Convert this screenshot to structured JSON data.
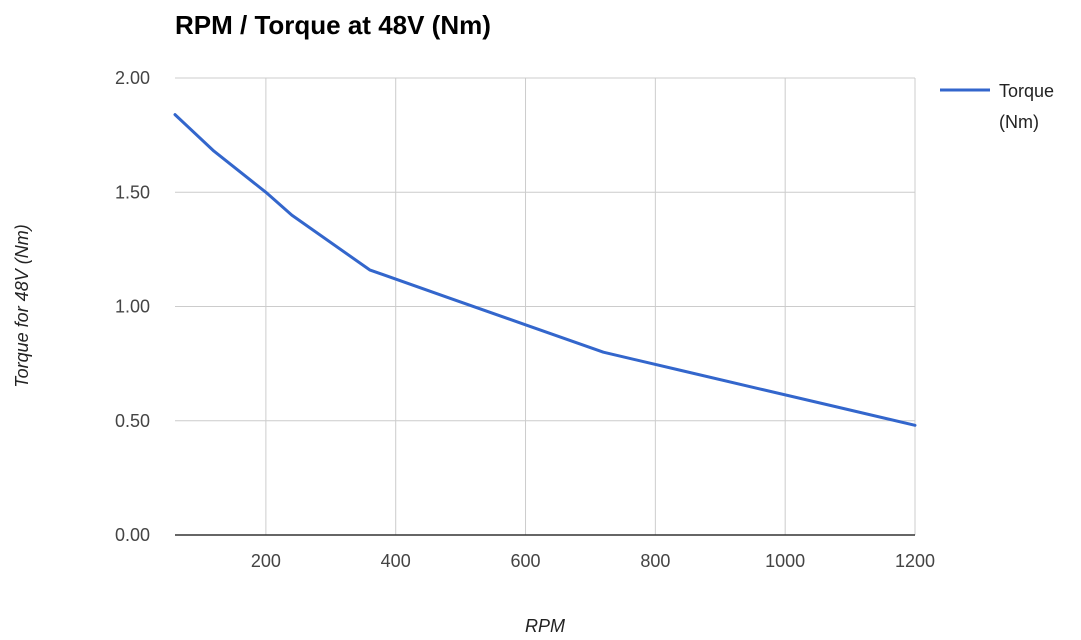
{
  "chart_data": {
    "type": "line",
    "title": "RPM / Torque at 48V (Nm)",
    "xlabel": "RPM",
    "ylabel": "Torque for 48V (Nm)",
    "xlim": [
      60,
      1200
    ],
    "ylim": [
      0,
      2
    ],
    "x_ticks": [
      200,
      400,
      600,
      800,
      1000,
      1200
    ],
    "y_ticks": [
      0,
      0.5,
      1,
      1.5,
      2
    ],
    "x_tick_labels": [
      "200",
      "400",
      "600",
      "800",
      "1000",
      "1200"
    ],
    "y_tick_labels": [
      "0.00",
      "0.50",
      "1.00",
      "1.50",
      "2.00"
    ],
    "grid": true,
    "legend_position": "right",
    "series": [
      {
        "name": "Torque (Nm)",
        "legend_lines": [
          "Torque",
          "(Nm)"
        ],
        "color": "#3366cc",
        "x": [
          60,
          120,
          200,
          240,
          360,
          480,
          600,
          720,
          840,
          960,
          1080,
          1200
        ],
        "y": [
          1.84,
          1.68,
          1.5,
          1.4,
          1.16,
          1.04,
          0.92,
          0.8,
          0.72,
          0.64,
          0.56,
          0.48
        ]
      }
    ]
  }
}
